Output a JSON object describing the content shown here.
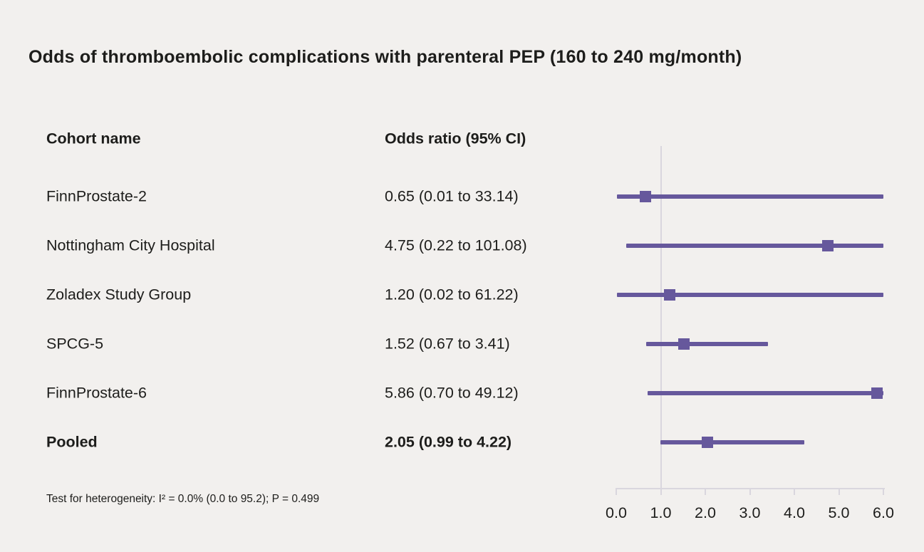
{
  "title": "Odds of thromboembolic complications with parenteral PEP (160 to 240 mg/month)",
  "columns": {
    "cohort": "Cohort name",
    "or": "Odds ratio (95% CI)"
  },
  "footnote": "Test for heterogeneity: I² = 0.0% (0.0 to 95.2); P = 0.499",
  "colors": {
    "accent": "#66589c",
    "grid": "#d9d6de",
    "background": "#f2f0ee",
    "text": "#1d1d1b"
  },
  "chart_data": {
    "type": "forest",
    "title": "Odds of thromboembolic complications with parenteral PEP (160 to 240 mg/month)",
    "xlabel": "",
    "ylabel": "",
    "xlim": [
      0.0,
      6.0
    ],
    "x_ticks": [
      0.0,
      1.0,
      2.0,
      3.0,
      4.0,
      5.0,
      6.0
    ],
    "x_tick_labels": [
      "0.0",
      "1.0",
      "2.0",
      "3.0",
      "4.0",
      "5.0",
      "6.0"
    ],
    "reference_line": 1.0,
    "grid": false,
    "rows": [
      {
        "cohort": "FinnProstate-2",
        "label": "0.65 (0.01 to 33.14)",
        "estimate": 0.65,
        "ci_low": 0.01,
        "ci_high": 33.14,
        "bold": false
      },
      {
        "cohort": "Nottingham City Hospital",
        "label": "4.75 (0.22 to 101.08)",
        "estimate": 4.75,
        "ci_low": 0.22,
        "ci_high": 101.08,
        "bold": false
      },
      {
        "cohort": "Zoladex Study Group",
        "label": "1.20 (0.02 to 61.22)",
        "estimate": 1.2,
        "ci_low": 0.02,
        "ci_high": 61.22,
        "bold": false
      },
      {
        "cohort": "SPCG-5",
        "label": "1.52 (0.67 to 3.41)",
        "estimate": 1.52,
        "ci_low": 0.67,
        "ci_high": 3.41,
        "bold": false
      },
      {
        "cohort": "FinnProstate-6",
        "label": "5.86 (0.70 to 49.12)",
        "estimate": 5.86,
        "ci_low": 0.7,
        "ci_high": 49.12,
        "bold": false
      },
      {
        "cohort": "Pooled",
        "label": "2.05 (0.99 to 4.22)",
        "estimate": 2.05,
        "ci_low": 0.99,
        "ci_high": 4.22,
        "bold": true
      }
    ]
  }
}
